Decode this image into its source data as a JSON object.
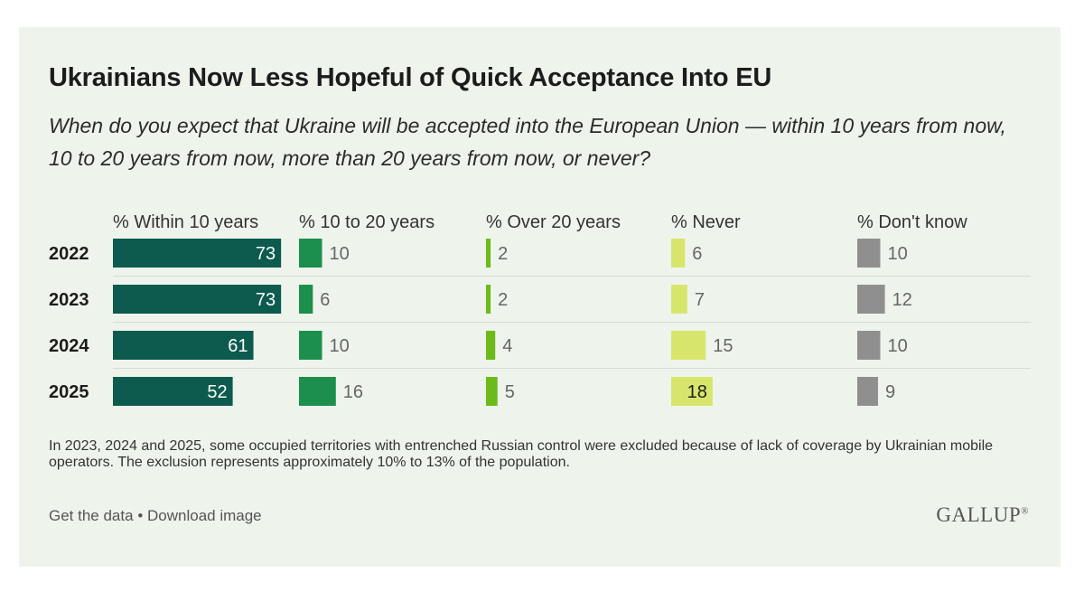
{
  "header": {
    "title": "Ukrainians Now Less Hopeful of Quick Acceptance Into EU",
    "subtitle": "When do you expect that Ukraine will be accepted into the European Union — within 10 years from now, 10 to 20 years from now, more than 20 years from now, or never?"
  },
  "chart_data": {
    "type": "bar",
    "layout": "small-multiples horizontal bars",
    "categories": [
      "2022",
      "2023",
      "2024",
      "2025"
    ],
    "series": [
      {
        "name": "% Within 10 years",
        "values": [
          73,
          73,
          61,
          52
        ],
        "color": "#0c5b4e"
      },
      {
        "name": "% 10 to 20 years",
        "values": [
          10,
          6,
          10,
          16
        ],
        "color": "#1c8f4c"
      },
      {
        "name": "% Over 20 years",
        "values": [
          2,
          2,
          4,
          5
        ],
        "color": "#6cbb1a"
      },
      {
        "name": "% Never",
        "values": [
          6,
          7,
          15,
          18
        ],
        "color": "#d7e66b"
      },
      {
        "name": "% Don't know",
        "values": [
          10,
          12,
          10,
          9
        ],
        "color": "#8f8f8f"
      }
    ],
    "grid": "horizontal row dividers",
    "legend": "column headers"
  },
  "note": "In 2023, 2024 and 2025, some occupied territories with entrenched Russian control were excluded because of lack of coverage by Ukrainian mobile operators. The exclusion represents approximately 10% to 13% of the population.",
  "footer": {
    "get_data": "Get the data",
    "separator": "•",
    "download": "Download image",
    "logo": "GALLUP",
    "logo_mark": "®"
  }
}
